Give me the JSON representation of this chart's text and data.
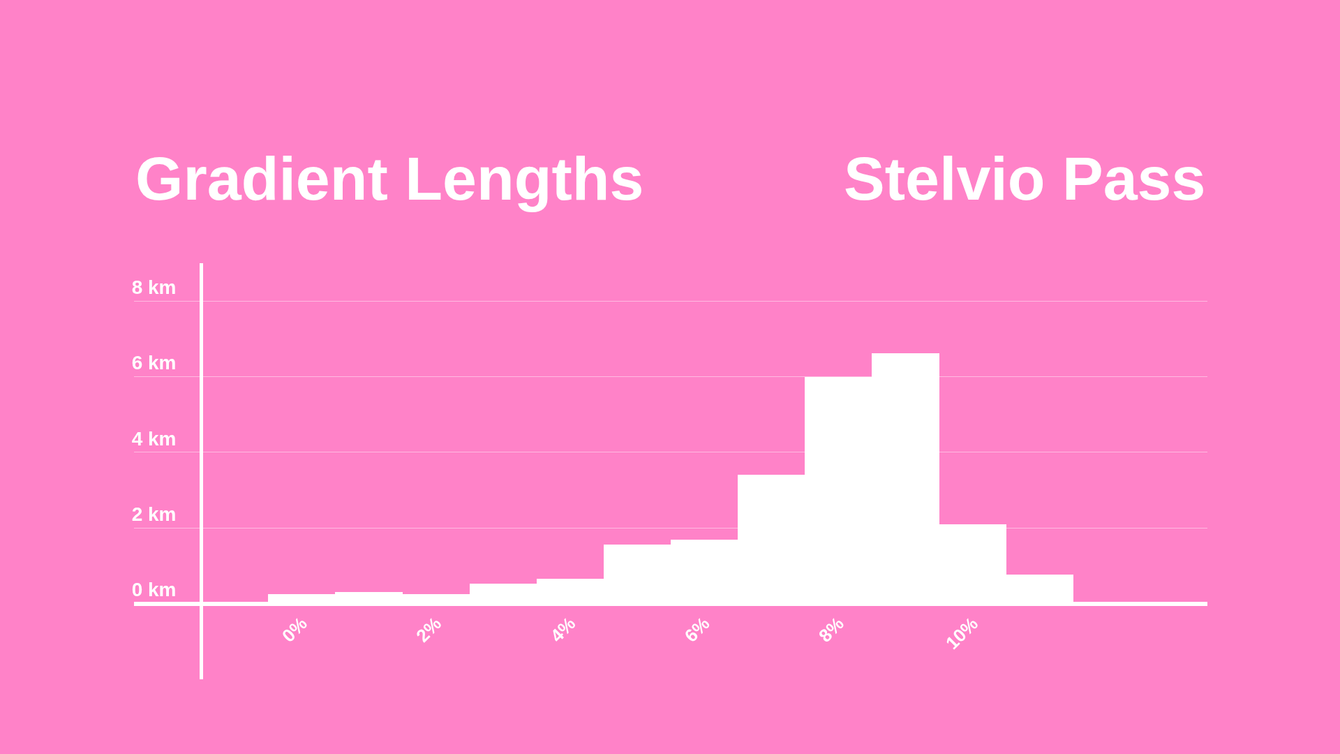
{
  "chart_data": {
    "type": "histogram",
    "title": "Gradient Lengths",
    "subtitle": "Stelvio Pass",
    "bins": [
      -1.5,
      -0.5,
      0.5,
      1.5,
      2.5,
      3.5,
      4.5,
      5.5,
      6.5,
      7.5,
      8.5,
      9.5,
      10.5,
      11.5,
      12.5,
      13.5
    ],
    "values": [
      0,
      0.25,
      0.3,
      0.25,
      0.53,
      0.66,
      1.56,
      1.69,
      3.41,
      6.0,
      6.62,
      2.09,
      0.77,
      0,
      0
    ],
    "color": "#ffffff",
    "xlim": [
      -2.5,
      13.5
    ],
    "xticks": [
      {
        "value": 0,
        "label": "0%"
      },
      {
        "value": 2,
        "label": "2%"
      },
      {
        "value": 4,
        "label": "4%"
      },
      {
        "value": 6,
        "label": "6%"
      },
      {
        "value": 8,
        "label": "8%"
      },
      {
        "value": 10,
        "label": "10%"
      }
    ],
    "ylim": [
      -2,
      9
    ],
    "yticks": [
      {
        "value": 0,
        "label": "0 km"
      },
      {
        "value": 2,
        "label": "2 km"
      },
      {
        "value": 4,
        "label": "4 km"
      },
      {
        "value": 6,
        "label": "6 km"
      },
      {
        "value": 8,
        "label": "8 km"
      }
    ],
    "grid": "y",
    "legend": false
  }
}
